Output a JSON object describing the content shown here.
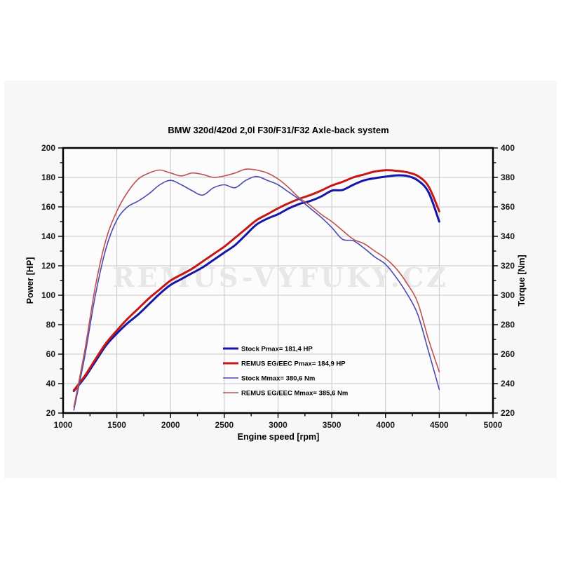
{
  "title": "BMW 320d/420d 2,0l F30/F31/F32  Axle-back system",
  "watermark": "REMUS-VYFUKY.CZ",
  "axes": {
    "x": {
      "label": "Engine speed [rpm]",
      "min": 1000,
      "max": 5000,
      "major_ticks": [
        1000,
        1500,
        2000,
        2500,
        3000,
        3500,
        4000,
        4500,
        5000
      ],
      "minor_step": 250
    },
    "power": {
      "label": "Power [HP]",
      "min": 20,
      "max": 200,
      "major_step": 20,
      "minor_step": 10
    },
    "torque": {
      "label": "Torque [Nm]",
      "min": 220,
      "max": 400,
      "major_step": 20,
      "minor_step": 10
    }
  },
  "colors": {
    "stock_power": "#1515a8",
    "remus_power": "#c41818",
    "stock_torque": "#4a4ab0",
    "remus_torque": "#c05050",
    "grid": "#c6c6c6",
    "frame": "#000000",
    "panel_background": "#f7f7f7",
    "plot_background": "#fcfcfc",
    "watermark": "#e7e7e7"
  },
  "chart_data": {
    "type": "line",
    "title": "BMW 320d/420d 2,0l F30/F31/F32  Axle-back system",
    "xlabel": "Engine speed [rpm]",
    "ylabel_left": "Power [HP]",
    "ylabel_right": "Torque [Nm]",
    "xlim": [
      1000,
      5000
    ],
    "ylim_power": [
      20,
      200
    ],
    "ylim_torque": [
      220,
      400
    ],
    "grid": true,
    "legend_position": "inside lower-center",
    "x_rpm": [
      1100,
      1200,
      1300,
      1400,
      1500,
      1600,
      1700,
      1800,
      1900,
      2000,
      2100,
      2200,
      2300,
      2400,
      2500,
      2600,
      2700,
      2800,
      2900,
      3000,
      3100,
      3200,
      3300,
      3400,
      3500,
      3600,
      3700,
      3800,
      3900,
      4000,
      4100,
      4200,
      4300,
      4400,
      4500
    ],
    "series": [
      {
        "id": "stock-power",
        "label": "Stock Pmax= 181,4 HP",
        "axis": "power",
        "peak": "181,4 HP",
        "color": "#1515a8",
        "width": 3,
        "values": [
          35,
          44,
          55,
          66,
          74,
          81,
          87,
          94,
          101,
          107,
          111,
          115,
          119,
          124,
          129,
          134,
          141,
          148,
          152,
          155,
          159,
          162,
          164,
          167,
          171,
          171.5,
          175,
          178,
          179.5,
          180.5,
          181.4,
          181,
          178,
          170,
          150
        ]
      },
      {
        "id": "remus-power",
        "label": "REMUS EG/EEC Pmax=  184,9 HP",
        "axis": "power",
        "peak": "184,9 HP",
        "color": "#c41818",
        "width": 3,
        "values": [
          35.5,
          45,
          56.5,
          67.5,
          76,
          84,
          91,
          98,
          104,
          110,
          114,
          118,
          123,
          128,
          133,
          139,
          145,
          151,
          155,
          159,
          162.5,
          165.5,
          168,
          171,
          174.5,
          177,
          180,
          182,
          184,
          184.9,
          184.5,
          183.5,
          181,
          174,
          157
        ]
      },
      {
        "id": "stock-torque",
        "label": "Stock Mmax= 380,6 Nm",
        "axis": "torque",
        "peak": "380,6 Nm",
        "color": "#4a4ab0",
        "width": 1.6,
        "values": [
          222,
          258,
          300,
          332,
          351,
          360,
          364,
          369,
          375,
          378,
          375,
          371,
          368,
          373,
          375,
          373,
          378,
          380.6,
          378,
          375,
          370,
          365,
          359,
          353,
          346,
          338,
          337,
          332,
          326,
          321,
          312,
          301,
          287,
          262,
          236
        ]
      },
      {
        "id": "remus-torque",
        "label": "REMUS EG/EEC Mmax= 385,6 Nm",
        "axis": "torque",
        "peak": "385,6 Nm",
        "color": "#c05050",
        "width": 1.6,
        "values": [
          224,
          262,
          306,
          338,
          357,
          370,
          379,
          383,
          385,
          383,
          381,
          383,
          382,
          380,
          381,
          383,
          385.6,
          385,
          383,
          379,
          373,
          366,
          361,
          355,
          350,
          344,
          338,
          335,
          330,
          325,
          318,
          308,
          295,
          270,
          248
        ]
      }
    ]
  }
}
